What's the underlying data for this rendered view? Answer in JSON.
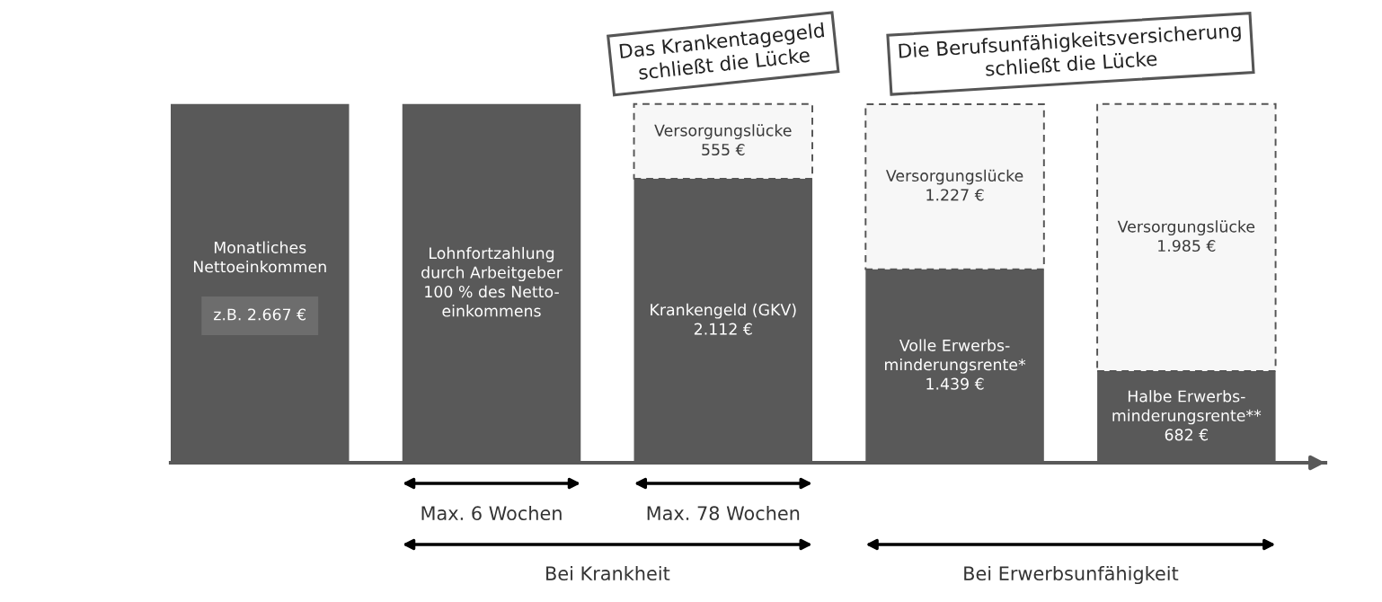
{
  "chart_data": {
    "type": "bar",
    "stacked": true,
    "tick_labels": false,
    "categories": [
      null,
      null,
      null,
      null,
      null
    ],
    "series": [
      {
        "color": "#595959",
        "values": [
          2667,
          2667,
          2112,
          1439,
          682
        ],
        "value_labels": [
          "Monatliches\nNettoeinkommen\n\nz.B. 2.667 €",
          "Lohnfortzahlung\ndurch Arbeitgeber\n100 % des Netto-\neinkommens",
          "Krankengeld (GKV)\n2.112 €",
          "Volle Erwerbs-\nminderungsrente*\n1.439 €",
          "Halbe Erwerbs-\nminderungsrente**\n682 €"
        ]
      },
      {
        "color": "#f7f7f7",
        "line_style": "dashed",
        "values": [
          null,
          null,
          555,
          1227,
          1985
        ],
        "value_labels": [
          null,
          null,
          "Versorgungslücke\n555 €",
          "Versorgungslücke\n1.227 €",
          "Versorgungslücke\n1.985 €"
        ]
      }
    ],
    "annotations": [
      "Das Krankentagegeld\nschließt die Lücke",
      "Die Berufsunfähigkeitsversicherung\nschließt die Lücke",
      "Max. 6 Wochen",
      "Max. 78 Wochen",
      "Bei Krankheit",
      "Bei Erwerbsunfähigkeit"
    ]
  }
}
